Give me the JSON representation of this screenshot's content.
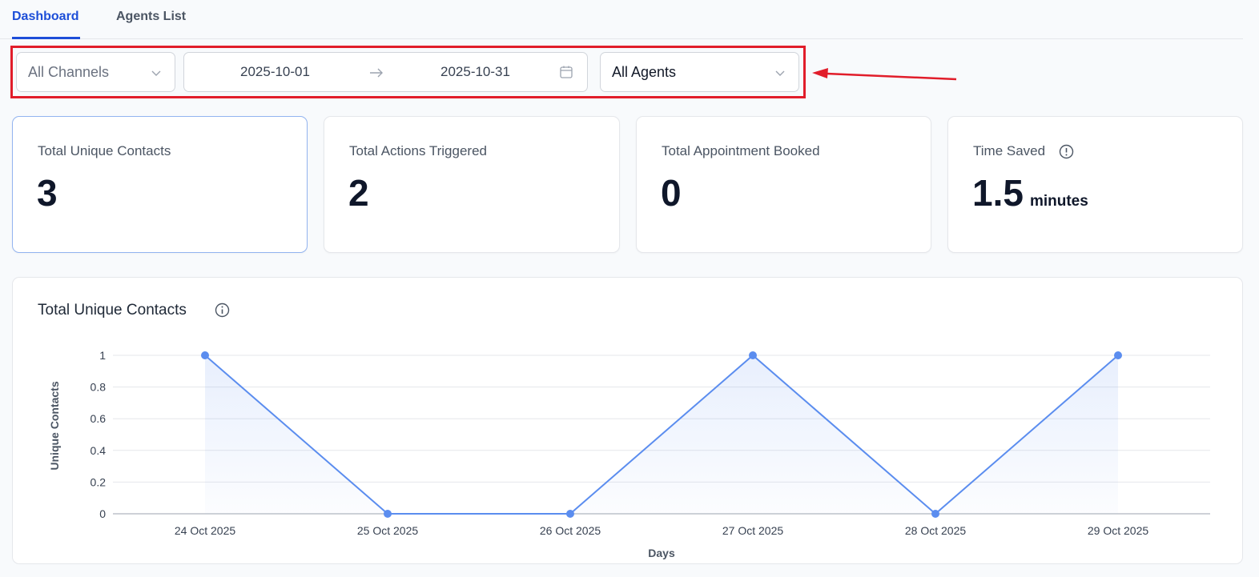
{
  "tabs": [
    {
      "label": "Dashboard",
      "active": true
    },
    {
      "label": "Agents List",
      "active": false
    }
  ],
  "filters": {
    "channels": "All Channels",
    "date_start": "2025-10-01",
    "date_end": "2025-10-31",
    "agents": "All Agents"
  },
  "cards": [
    {
      "label": "Total Unique Contacts",
      "value": "3"
    },
    {
      "label": "Total Actions Triggered",
      "value": "2"
    },
    {
      "label": "Total Appointment Booked",
      "value": "0"
    },
    {
      "label": "Time Saved",
      "value": "1.5",
      "unit": "minutes"
    }
  ],
  "colors": {
    "accent": "#1d4ed8",
    "line": "#5b8def",
    "annotation": "#e11d2a"
  },
  "chart_title": "Total Unique Contacts",
  "chart_data": {
    "type": "line",
    "categories": [
      "24 Oct 2025",
      "25 Oct 2025",
      "26 Oct 2025",
      "27 Oct 2025",
      "28 Oct 2025",
      "29 Oct 2025"
    ],
    "values": [
      1,
      0,
      0,
      1,
      0,
      1
    ],
    "yticks": [
      "0",
      "0.2",
      "0.4",
      "0.6",
      "0.8",
      "1"
    ],
    "ylim": [
      0,
      1
    ],
    "xlabel": "Days",
    "ylabel": "Unique Contacts",
    "grid": true
  }
}
